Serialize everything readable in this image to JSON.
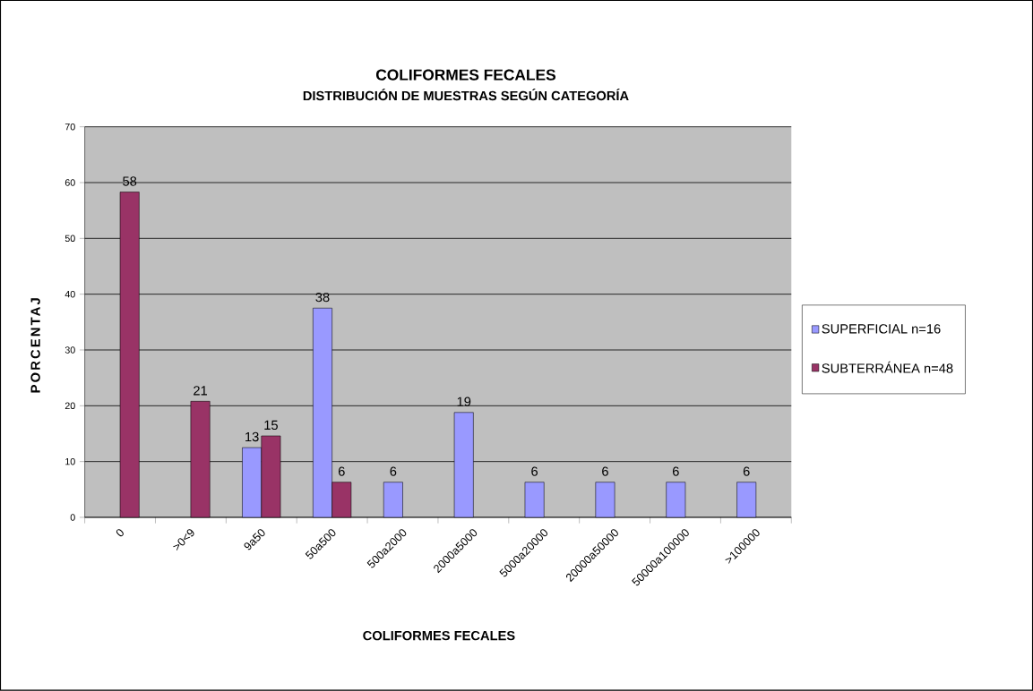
{
  "chart_data": {
    "type": "bar",
    "title": "COLIFORMES FECALES",
    "subtitle": "DISTRIBUCIÓN DE MUESTRAS SEGÚN CATEGORÍA",
    "xlabel": "COLIFORMES FECALES",
    "ylabel": "PORCENTAJ",
    "categories": [
      "0",
      ">0<9",
      "9a50",
      "50a500",
      "500a2000",
      "2000a5000",
      "5000a20000",
      "20000a50000",
      "50000a100000",
      ">100000"
    ],
    "series": [
      {
        "name": "SUPERFICIAL n=16",
        "color": "#9999ff",
        "values": [
          null,
          null,
          12.5,
          37.5,
          6.3,
          18.8,
          6.3,
          6.3,
          6.3,
          6.3
        ],
        "value_labels": [
          null,
          null,
          "13",
          "38",
          "6",
          "19",
          "6",
          "6",
          "6",
          "6"
        ]
      },
      {
        "name": "SUBTERRÁNEA n=48",
        "color": "#993366",
        "values": [
          58.3,
          20.8,
          14.6,
          6.3,
          null,
          null,
          null,
          null,
          null,
          null
        ],
        "value_labels": [
          "58",
          "21",
          "15",
          "6",
          null,
          null,
          null,
          null,
          null,
          null
        ]
      }
    ],
    "ylim": [
      0,
      70
    ],
    "yticks": [
      0,
      10,
      20,
      30,
      40,
      50,
      60,
      70
    ],
    "grid": "y",
    "legend": "right"
  }
}
